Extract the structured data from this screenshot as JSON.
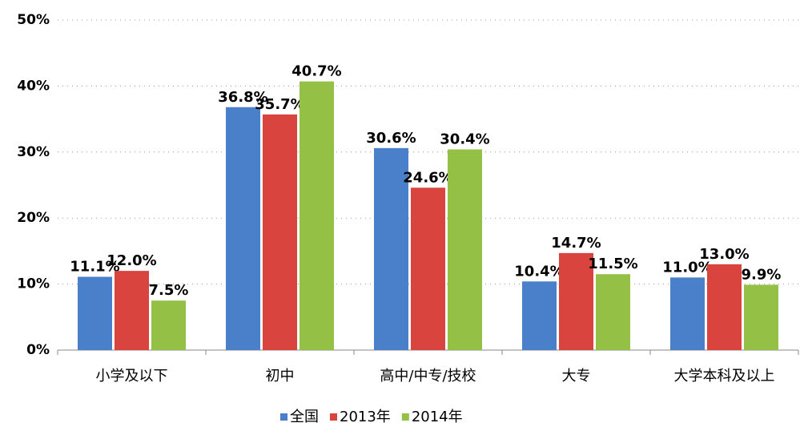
{
  "chart_data": {
    "type": "bar",
    "categories": [
      "小学及以下",
      "初中",
      "高中/中专/技校",
      "大专",
      "大学本科及以上"
    ],
    "series": [
      {
        "name": "全国",
        "color": "#4a7fc9",
        "values": [
          11.1,
          36.8,
          30.6,
          10.4,
          11.0
        ],
        "value_labels": [
          "11.1%",
          "36.8%",
          "30.6%",
          "10.4%",
          "11.0%"
        ]
      },
      {
        "name": "2013年",
        "color": "#d9443f",
        "values": [
          12.0,
          35.7,
          24.6,
          14.7,
          13.0
        ],
        "value_labels": [
          "12.0%",
          "35.7%",
          "24.6%",
          "14.7%",
          "13.0%"
        ]
      },
      {
        "name": "2014年",
        "color": "#93c045",
        "values": [
          7.5,
          40.7,
          30.4,
          11.5,
          9.9
        ],
        "value_labels": [
          "7.5%",
          "40.7%",
          "30.4%",
          "11.5%",
          "9.9%"
        ]
      }
    ],
    "ylim": [
      0,
      50
    ],
    "yticks": [
      {
        "value": 0,
        "label": "0%"
      },
      {
        "value": 10,
        "label": "10%"
      },
      {
        "value": 20,
        "label": "20%"
      },
      {
        "value": 30,
        "label": "30%"
      },
      {
        "value": 40,
        "label": "40%"
      },
      {
        "value": 50,
        "label": "50%"
      }
    ],
    "grid": true,
    "legend": "bottom"
  }
}
